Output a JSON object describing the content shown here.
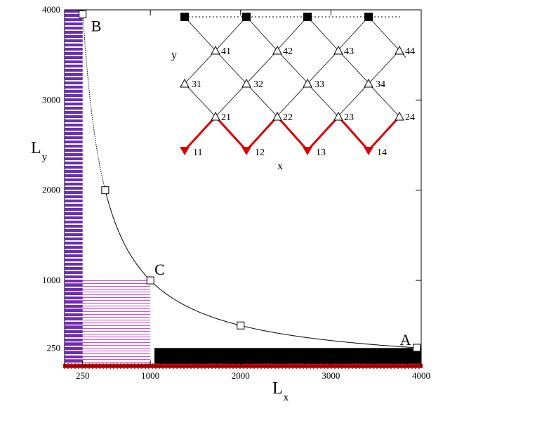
{
  "chart_data": {
    "type": "line",
    "xlim": [
      50,
      4000
    ],
    "ylim": [
      50,
      4000
    ],
    "x_ticks": [
      "250",
      "1000",
      "2000",
      "3000",
      "4000"
    ],
    "y_ticks": [
      "250",
      "1000",
      "2000",
      "3000",
      "4000"
    ],
    "xlabel_main": "L",
    "xlabel_sub": "x",
    "ylabel_main": "L",
    "ylabel_sub": "y",
    "curve": {
      "formula": "Lx*Ly = 1000000",
      "x_range": [
        250,
        4000
      ]
    },
    "markers": [
      {
        "x": 250,
        "y": 3950
      },
      {
        "x": 500,
        "y": 2000
      },
      {
        "x": 1000,
        "y": 1000
      },
      {
        "x": 2000,
        "y": 500
      },
      {
        "x": 3950,
        "y": 253
      }
    ],
    "point_labels": [
      {
        "text": "B",
        "x": 250,
        "y": 3950
      },
      {
        "text": "C",
        "x": 1000,
        "y": 1000
      },
      {
        "text": "A",
        "x": 3950,
        "y": 253
      }
    ],
    "regions": [
      {
        "name": "purple-strip",
        "x": [
          50,
          250
        ],
        "y": [
          50,
          4000
        ],
        "color": "#6a2fb8"
      },
      {
        "name": "magenta-square",
        "x": [
          50,
          1000
        ],
        "y": [
          50,
          1000
        ],
        "color": "#cc44cc"
      },
      {
        "name": "black-strip",
        "x": [
          50,
          4000
        ],
        "y": [
          50,
          250
        ],
        "color": "#000000"
      },
      {
        "name": "red-baseline",
        "x": [
          50,
          4000
        ],
        "y": [
          50,
          50
        ],
        "color": "#dd0000"
      }
    ]
  },
  "inset": {
    "axis_x": "x",
    "axis_y": "y",
    "row4": [
      "41",
      "42",
      "43",
      "44"
    ],
    "row3": [
      "31",
      "32",
      "33",
      "34"
    ],
    "row2": [
      "21",
      "22",
      "23",
      "24"
    ],
    "row1": [
      "11",
      "12",
      "13",
      "14"
    ],
    "zigzag_color": "#dd0000"
  }
}
